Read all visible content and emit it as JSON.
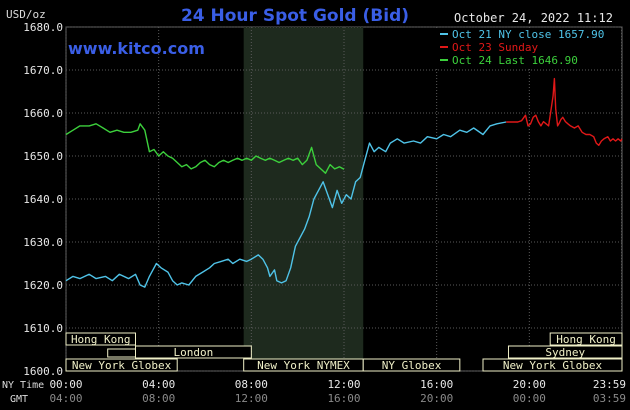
{
  "chart_data": {
    "type": "line",
    "title": "24 Hour Spot Gold (Bid)",
    "website": "www.kitco.com",
    "unit_label": "USD/oz",
    "timestamp": "October 24, 2022 11:12",
    "y_range": [
      1600,
      1680
    ],
    "y_ticks": [
      "1680.0",
      "1670.0",
      "1660.0",
      "1650.0",
      "1640.0",
      "1630.0",
      "1620.0",
      "1610.0",
      "1600.0"
    ],
    "x_range_hours": [
      0,
      24
    ],
    "x_tick_hours": [
      0,
      4,
      8,
      12,
      16,
      20,
      23.98
    ],
    "x_axis": {
      "ny_label": "NY Time",
      "gmt_label": "GMT",
      "ny_ticks": [
        "00:00",
        "04:00",
        "08:00",
        "12:00",
        "16:00",
        "20:00",
        "23:59"
      ],
      "gmt_ticks": [
        "04:00",
        "08:00",
        "12:00",
        "16:00",
        "20:00",
        "00:00",
        "03:59"
      ]
    },
    "grid": true,
    "highlight_hours": [
      7.67,
      12.83
    ],
    "legend": [
      {
        "text": "Oct 21 NY close 1657.90",
        "color": "#4fc3e8"
      },
      {
        "text": "Oct 23 Sunday",
        "color": "#e01818"
      },
      {
        "text": "Oct 24 Last 1646.90",
        "color": "#3cd03c"
      }
    ],
    "series": [
      {
        "name": "Oct 21 NY close 1657.90",
        "color": "#4fc3e8",
        "points": [
          [
            0,
            1621
          ],
          [
            0.3,
            1622
          ],
          [
            0.6,
            1621.5
          ],
          [
            1,
            1622.5
          ],
          [
            1.3,
            1621.5
          ],
          [
            1.7,
            1622
          ],
          [
            2,
            1621
          ],
          [
            2.3,
            1622.5
          ],
          [
            2.7,
            1621.5
          ],
          [
            3,
            1622.5
          ],
          [
            3.2,
            1620
          ],
          [
            3.4,
            1619.5
          ],
          [
            3.6,
            1622
          ],
          [
            3.9,
            1625
          ],
          [
            4.1,
            1624
          ],
          [
            4.4,
            1623
          ],
          [
            4.6,
            1621
          ],
          [
            4.8,
            1620
          ],
          [
            5,
            1620.5
          ],
          [
            5.3,
            1620
          ],
          [
            5.6,
            1622
          ],
          [
            5.9,
            1623
          ],
          [
            6.2,
            1624
          ],
          [
            6.4,
            1625
          ],
          [
            6.7,
            1625.5
          ],
          [
            7,
            1626
          ],
          [
            7.2,
            1625
          ],
          [
            7.5,
            1626
          ],
          [
            7.8,
            1625.5
          ],
          [
            8,
            1626
          ],
          [
            8.3,
            1627
          ],
          [
            8.5,
            1626
          ],
          [
            8.7,
            1624
          ],
          [
            8.8,
            1622
          ],
          [
            9,
            1623.5
          ],
          [
            9.1,
            1621
          ],
          [
            9.3,
            1620.5
          ],
          [
            9.5,
            1621
          ],
          [
            9.7,
            1624
          ],
          [
            9.9,
            1629
          ],
          [
            10.1,
            1631
          ],
          [
            10.3,
            1633
          ],
          [
            10.5,
            1636
          ],
          [
            10.7,
            1640
          ],
          [
            10.9,
            1642
          ],
          [
            11.1,
            1644
          ],
          [
            11.3,
            1641
          ],
          [
            11.5,
            1638
          ],
          [
            11.7,
            1642
          ],
          [
            11.9,
            1639
          ],
          [
            12.1,
            1641
          ],
          [
            12.3,
            1640
          ],
          [
            12.5,
            1644
          ],
          [
            12.7,
            1645
          ],
          [
            12.9,
            1649
          ],
          [
            13.1,
            1653
          ],
          [
            13.3,
            1651
          ],
          [
            13.5,
            1652
          ],
          [
            13.8,
            1651
          ],
          [
            14,
            1653
          ],
          [
            14.3,
            1654
          ],
          [
            14.6,
            1653
          ],
          [
            15,
            1653.5
          ],
          [
            15.3,
            1653
          ],
          [
            15.6,
            1654.5
          ],
          [
            16,
            1654
          ],
          [
            16.3,
            1655
          ],
          [
            16.6,
            1654.5
          ],
          [
            17,
            1656
          ],
          [
            17.3,
            1655.5
          ],
          [
            17.6,
            1656.5
          ],
          [
            18,
            1655
          ],
          [
            18.3,
            1657
          ],
          [
            18.6,
            1657.5
          ],
          [
            19,
            1657.9
          ]
        ]
      },
      {
        "name": "Oct 23 Sunday",
        "color": "#e01818",
        "points": [
          [
            19,
            1657.9
          ],
          [
            19.6,
            1657.9
          ],
          [
            19.9,
            1657.9
          ],
          [
            20.2,
            1658.2
          ],
          [
            20.5,
            1659.5
          ],
          [
            20.7,
            1657
          ],
          [
            20.9,
            1657.5
          ],
          [
            21.1,
            1659
          ],
          [
            21.3,
            1659.5
          ],
          [
            21.5,
            1658
          ],
          [
            21.7,
            1657
          ],
          [
            21.9,
            1658
          ],
          [
            22.1,
            1657.5
          ],
          [
            22.3,
            1657
          ],
          [
            22.5,
            1661
          ],
          [
            22.65,
            1664
          ],
          [
            22.75,
            1668
          ],
          [
            22.85,
            1661
          ],
          [
            23,
            1657
          ],
          [
            23.1,
            1657.5
          ],
          [
            23.25,
            1658.5
          ],
          [
            23.4,
            1659
          ],
          [
            23.6,
            1658
          ],
          [
            23.8,
            1657.5
          ],
          [
            24,
            1657
          ],
          [
            24.3,
            1656.5
          ],
          [
            24.6,
            1657
          ],
          [
            24.9,
            1655.5
          ],
          [
            25.2,
            1655
          ],
          [
            25.5,
            1655
          ],
          [
            25.8,
            1654.5
          ],
          [
            26,
            1653
          ],
          [
            26.2,
            1652.5
          ],
          [
            26.4,
            1653.5
          ],
          [
            26.6,
            1654
          ],
          [
            26.9,
            1654.5
          ],
          [
            27.1,
            1653.5
          ],
          [
            27.3,
            1654
          ],
          [
            27.5,
            1653.5
          ],
          [
            27.7,
            1654
          ],
          [
            27.9,
            1653.5
          ],
          [
            28,
            1654
          ]
        ]
      },
      {
        "name": "Oct 24 Last 1646.90",
        "color": "#3cd03c",
        "points": [
          [
            0,
            1655
          ],
          [
            0.3,
            1656
          ],
          [
            0.6,
            1657
          ],
          [
            1,
            1657
          ],
          [
            1.3,
            1657.5
          ],
          [
            1.6,
            1656.5
          ],
          [
            1.9,
            1655.5
          ],
          [
            2.2,
            1656
          ],
          [
            2.5,
            1655.5
          ],
          [
            2.8,
            1655.5
          ],
          [
            3.1,
            1656
          ],
          [
            3.2,
            1657.5
          ],
          [
            3.4,
            1656
          ],
          [
            3.6,
            1651
          ],
          [
            3.8,
            1651.5
          ],
          [
            4,
            1650
          ],
          [
            4.2,
            1651
          ],
          [
            4.4,
            1650
          ],
          [
            4.6,
            1649.5
          ],
          [
            4.8,
            1648.5
          ],
          [
            5,
            1647.5
          ],
          [
            5.2,
            1648
          ],
          [
            5.4,
            1647
          ],
          [
            5.6,
            1647.5
          ],
          [
            5.8,
            1648.5
          ],
          [
            6,
            1649
          ],
          [
            6.2,
            1648
          ],
          [
            6.4,
            1647.5
          ],
          [
            6.6,
            1648.5
          ],
          [
            6.8,
            1649
          ],
          [
            7,
            1648.5
          ],
          [
            7.2,
            1649
          ],
          [
            7.4,
            1649.5
          ],
          [
            7.6,
            1649
          ],
          [
            7.8,
            1649.5
          ],
          [
            8,
            1649
          ],
          [
            8.2,
            1650
          ],
          [
            8.4,
            1649.5
          ],
          [
            8.6,
            1649
          ],
          [
            8.8,
            1649.5
          ],
          [
            9,
            1649
          ],
          [
            9.2,
            1648.5
          ],
          [
            9.4,
            1649
          ],
          [
            9.6,
            1649.5
          ],
          [
            9.8,
            1649
          ],
          [
            10,
            1649.5
          ],
          [
            10.2,
            1648
          ],
          [
            10.4,
            1649
          ],
          [
            10.6,
            1652
          ],
          [
            10.8,
            1648
          ],
          [
            11,
            1647
          ],
          [
            11.2,
            1646
          ],
          [
            11.4,
            1648
          ],
          [
            11.6,
            1647
          ],
          [
            11.8,
            1647.5
          ],
          [
            12,
            1646.9
          ]
        ]
      }
    ],
    "sessions": [
      {
        "label": "Hong Kong",
        "color": "#f0f0c8",
        "row": 0,
        "start": 0,
        "end": 3,
        "tail": 0
      },
      {
        "label": "London",
        "color": "#f0f0c8",
        "row": 1,
        "start": 3,
        "end": 8,
        "tail": 3
      },
      {
        "label": "New York Globex",
        "color": "#f0f0c8",
        "row": 2,
        "start": 0,
        "end": 4.8,
        "tail": 0
      },
      {
        "label": "New York NYMEX",
        "color": "#f0f0c8",
        "row": 2,
        "start": 7.67,
        "end": 12.83,
        "tail": 0
      },
      {
        "label": "NY Globex",
        "color": "#f0f0c8",
        "row": 2,
        "start": 12.83,
        "end": 17,
        "tail": 0
      },
      {
        "label": "Hong Kong",
        "color": "#f0f0c8",
        "row": 0,
        "start": 20.9,
        "end": 24,
        "tail": 0
      },
      {
        "label": "Sydney",
        "color": "#f0f0c8",
        "row": 1,
        "start": 19.1,
        "end": 24,
        "tail": 0
      },
      {
        "label": "New York Globex",
        "color": "#f0f0c8",
        "row": 2,
        "start": 18,
        "end": 24,
        "tail": 0
      }
    ]
  }
}
